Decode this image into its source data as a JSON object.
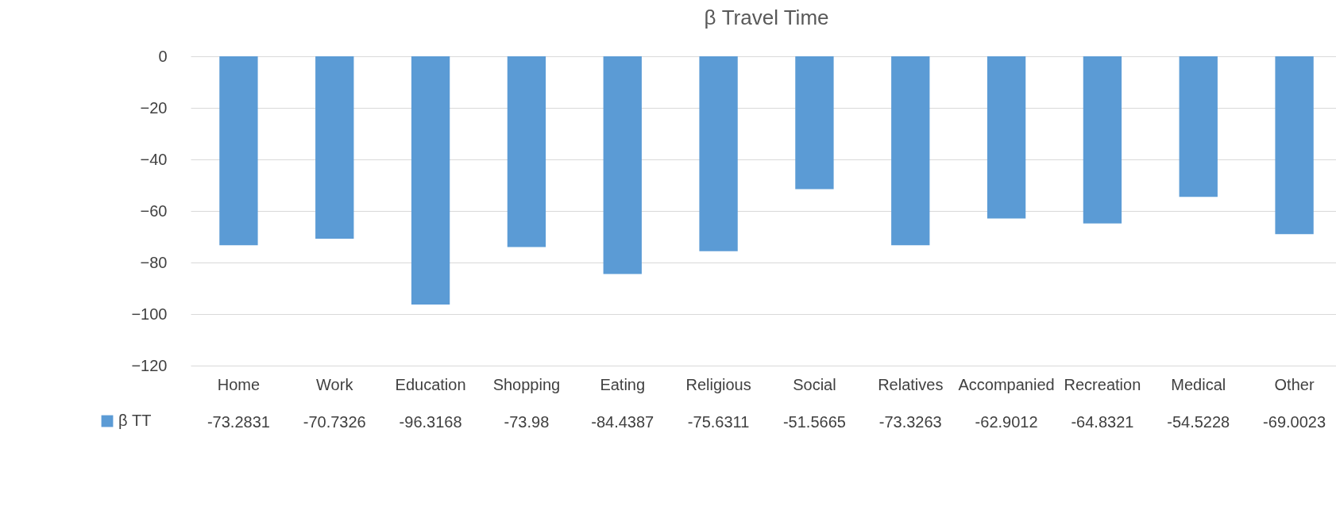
{
  "chart_data": {
    "type": "bar",
    "title": "β Travel Time",
    "categories": [
      "Home",
      "Work",
      "Education",
      "Shopping",
      "Eating",
      "Religious",
      "Social",
      "Relatives",
      "Accompanied",
      "Recreation",
      "Medical",
      "Other"
    ],
    "series": [
      {
        "name": "β TT",
        "color": "#5b9bd5",
        "values": [
          -73.2831,
          -70.7326,
          -96.3168,
          -73.98,
          -84.4387,
          -75.6311,
          -51.5665,
          -73.3263,
          -62.9012,
          -64.8321,
          -54.5228,
          -69.0023
        ]
      }
    ],
    "ylim": [
      -120,
      0
    ],
    "yticks": [
      -120,
      -100,
      -80,
      -60,
      -40,
      -20,
      0
    ],
    "grid": "y",
    "data_labels": true,
    "legend": "bottom left"
  }
}
